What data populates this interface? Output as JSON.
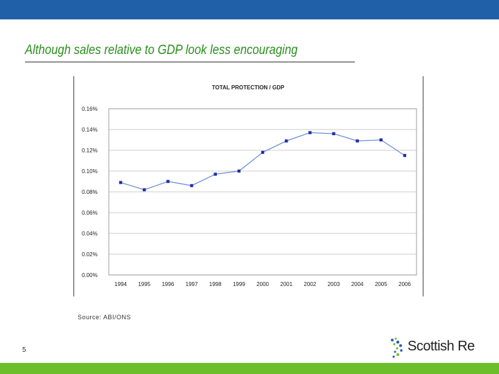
{
  "slide": {
    "title": "Although sales relative to GDP look less encouraging",
    "source": "Source: ABI/ONS",
    "page_number": "5",
    "logo_text": "Scottish Re",
    "top_bar_color": "#2060a8",
    "bottom_bar_color": "#6cbf2a",
    "title_color": "#2a8f1e"
  },
  "chart_data": {
    "type": "line",
    "title": "TOTAL PROTECTION / GDP",
    "xlabel": "",
    "ylabel": "",
    "categories": [
      "1994",
      "1995",
      "1996",
      "1997",
      "1998",
      "1999",
      "2000",
      "2001",
      "2002",
      "2003",
      "2004",
      "2005",
      "2006"
    ],
    "series": [
      {
        "values": [
          0.089,
          0.082,
          0.09,
          0.086,
          0.097,
          0.1,
          0.118,
          0.129,
          0.137,
          0.136,
          0.129,
          0.13,
          0.115
        ],
        "color": "#1f2fa8"
      }
    ],
    "ylim": [
      0,
      0.16
    ],
    "yticks": [
      "0.00%",
      "0.02%",
      "0.04%",
      "0.06%",
      "0.08%",
      "0.10%",
      "0.12%",
      "0.14%",
      "0.16%"
    ],
    "grid": true,
    "legend": "none"
  }
}
